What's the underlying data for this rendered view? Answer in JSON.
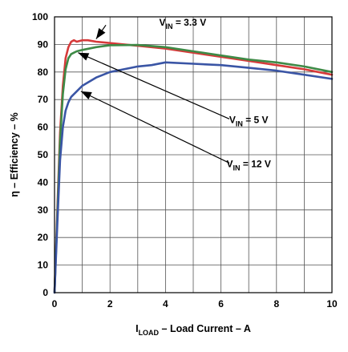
{
  "chart_data": {
    "type": "line",
    "xlabel": {
      "prefix": "I",
      "sub": "LOAD",
      "rest": " – Load Current – A"
    },
    "ylabel": "η – Efficiency – %",
    "xlim": [
      0,
      10
    ],
    "ylim": [
      0,
      100
    ],
    "x_ticks": [
      0,
      2,
      4,
      6,
      8,
      10
    ],
    "y_ticks": [
      0,
      10,
      20,
      30,
      40,
      50,
      60,
      70,
      80,
      90,
      100
    ],
    "grid": true,
    "series": [
      {
        "name": "VIN = 3.3 V",
        "color": "#d63a3a",
        "x": [
          0,
          0.1,
          0.2,
          0.3,
          0.4,
          0.5,
          0.6,
          0.7,
          0.8,
          1.0,
          1.2,
          1.5,
          2.0,
          2.5,
          3.0,
          4.0,
          5.0,
          6.0,
          7.0,
          8.0,
          9.0,
          10.0
        ],
        "y": [
          0,
          30,
          58,
          75,
          85,
          89,
          91,
          91.5,
          91,
          91.5,
          91.5,
          91,
          90.5,
          90,
          89.5,
          88.5,
          87,
          85.5,
          84,
          82.5,
          81,
          79
        ]
      },
      {
        "name": "VIN = 5 V",
        "color": "#3e8a46",
        "x": [
          0,
          0.1,
          0.2,
          0.3,
          0.4,
          0.5,
          0.6,
          0.7,
          0.8,
          1.0,
          1.5,
          2.0,
          3.0,
          4.0,
          5.0,
          6.0,
          7.0,
          8.0,
          9.0,
          10.0
        ],
        "y": [
          0,
          28,
          55,
          72,
          81,
          85,
          86.5,
          87,
          87.5,
          88,
          89,
          89.7,
          89.8,
          89,
          87.5,
          86,
          84.5,
          83.5,
          82,
          80
        ]
      },
      {
        "name": "VIN = 12 V",
        "color": "#3a55a5",
        "x": [
          0,
          0.1,
          0.2,
          0.3,
          0.4,
          0.5,
          0.6,
          0.8,
          1.0,
          1.5,
          2.0,
          2.5,
          3.0,
          3.5,
          4.0,
          5.0,
          6.0,
          7.0,
          8.0,
          9.0,
          10.0
        ],
        "y": [
          0,
          25,
          48,
          60,
          66,
          69,
          71,
          73,
          75,
          78,
          80,
          81,
          82,
          82.5,
          83.5,
          83,
          82.5,
          81.5,
          80.5,
          79,
          77.5
        ]
      }
    ],
    "annotations": [
      {
        "main": "V",
        "sub": "IN",
        "value": " = 3.3 V",
        "text_x": 4.62,
        "text_y": 96.8,
        "arrow_from": [
          1.85,
          97
        ],
        "arrow_to": [
          1.5,
          92
        ]
      },
      {
        "main": "V",
        "sub": "IN",
        "value": " = 5 V",
        "text_x": 7.0,
        "text_y": 61.5,
        "arrow_from": [
          6.3,
          63
        ],
        "arrow_to": [
          0.85,
          87
        ]
      },
      {
        "main": "V",
        "sub": "IN",
        "value": " = 12 V",
        "text_x": 7.0,
        "text_y": 45.5,
        "arrow_from": [
          6.3,
          47
        ],
        "arrow_to": [
          0.95,
          73
        ]
      }
    ]
  }
}
